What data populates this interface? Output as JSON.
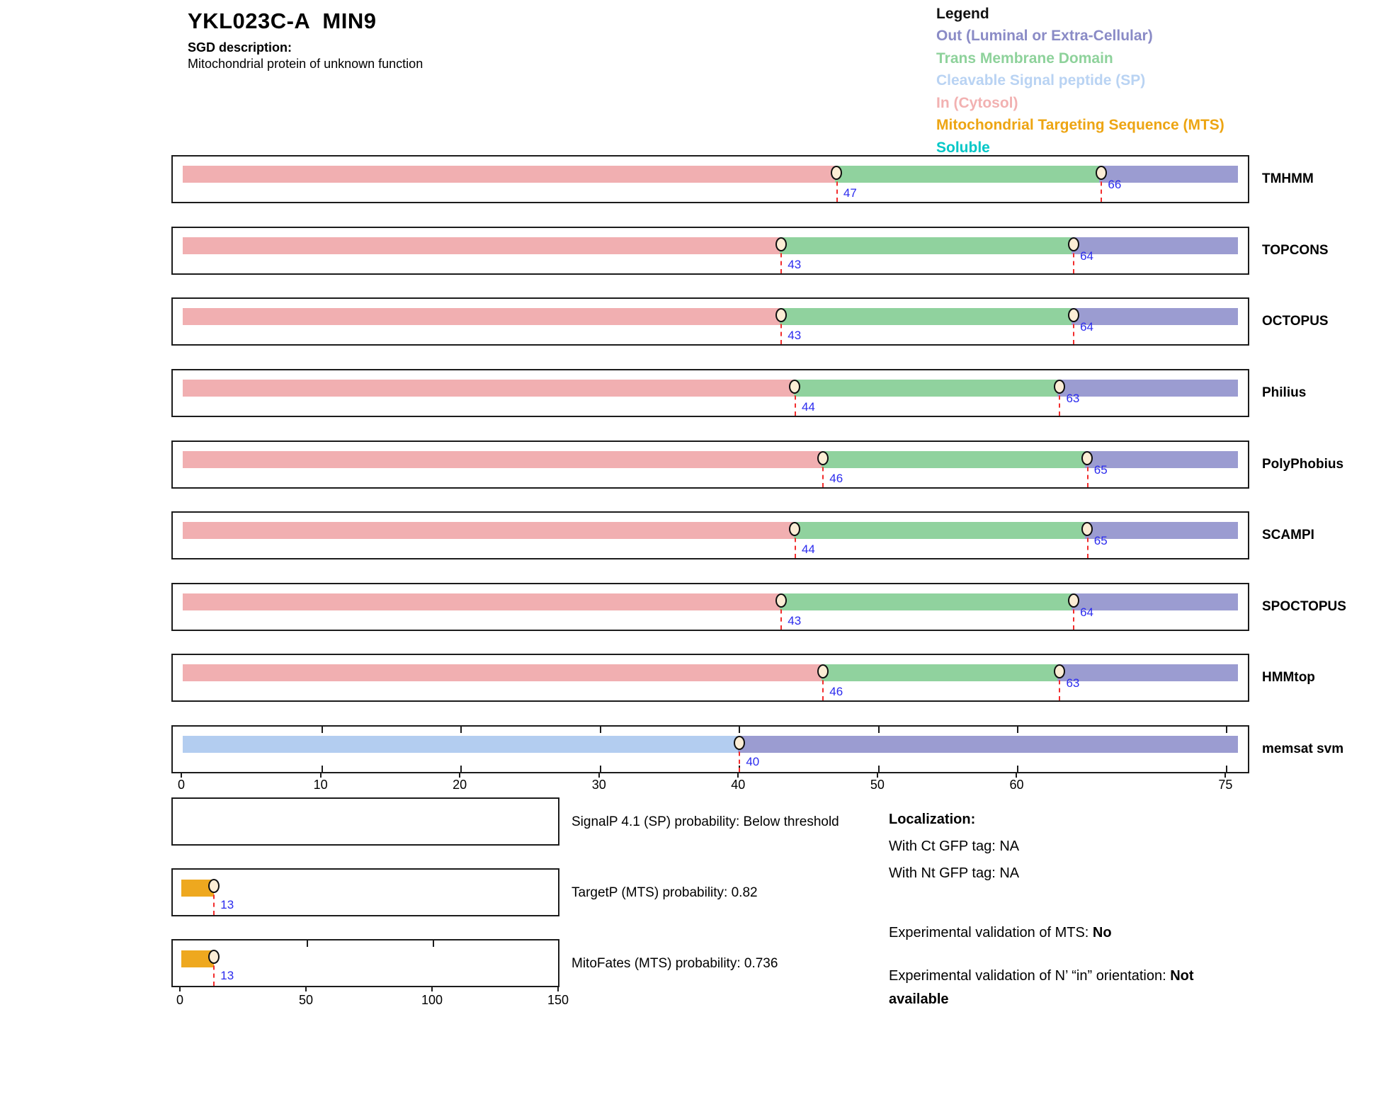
{
  "header": {
    "title": "YKL023C-A  MIN9",
    "sgd_label": "SGD description:",
    "sgd_description": "Mitochondrial protein of unknown function"
  },
  "legend": {
    "title": "Legend",
    "items": [
      {
        "label": "Out (Luminal or Extra-Cellular)",
        "color": "#8a8bc6"
      },
      {
        "label": "Trans Membrane Domain",
        "color": "#8ed29b"
      },
      {
        "label": "Cleavable Signal peptide (SP)",
        "color": "#b9d3f3"
      },
      {
        "label": "In (Cytosol)",
        "color": "#f2b1b1"
      },
      {
        "label": "Mitochondrial Targeting Sequence (MTS)",
        "color": "#eda513"
      },
      {
        "label": "Soluble",
        "color": "#00c7c7"
      }
    ]
  },
  "colors": {
    "in_cytosol": "#f1afb1",
    "trans_membrane": "#90d29e",
    "out_luminal": "#9b9cd1",
    "signal_peptide": "#b3cdf0",
    "mts": "#eea81f",
    "marker_fill": "#fcedd5",
    "boundary_line": "#f22d2d",
    "position_number": "#2b2bee",
    "box_border": "#1c1c1c"
  },
  "chart_data": {
    "type": "bar",
    "title": "YKL023C-A MIN9 membrane topology predictions",
    "x_axis_unit": "residue position",
    "main_axis": {
      "xmax": 76,
      "tick_positions": [
        0,
        10,
        20,
        30,
        40,
        50,
        60,
        75
      ],
      "ticks": [
        "0",
        "10",
        "20",
        "30",
        "40",
        "50",
        "60",
        "75"
      ]
    },
    "tracks": [
      {
        "name": "TMHMM",
        "xmax": 76,
        "segments": [
          {
            "from": 0,
            "to": 47,
            "color": "in_cytosol"
          },
          {
            "from": 47,
            "to": 66,
            "color": "trans_membrane"
          },
          {
            "from": 66,
            "to": 76,
            "color": "out_luminal"
          }
        ],
        "markers": [
          {
            "pos": 47,
            "label": "47"
          },
          {
            "pos": 66,
            "label": "66"
          }
        ]
      },
      {
        "name": "TOPCONS",
        "xmax": 76,
        "segments": [
          {
            "from": 0,
            "to": 43,
            "color": "in_cytosol"
          },
          {
            "from": 43,
            "to": 64,
            "color": "trans_membrane"
          },
          {
            "from": 64,
            "to": 76,
            "color": "out_luminal"
          }
        ],
        "markers": [
          {
            "pos": 43,
            "label": "43"
          },
          {
            "pos": 64,
            "label": "64"
          }
        ]
      },
      {
        "name": "OCTOPUS",
        "xmax": 76,
        "segments": [
          {
            "from": 0,
            "to": 43,
            "color": "in_cytosol"
          },
          {
            "from": 43,
            "to": 64,
            "color": "trans_membrane"
          },
          {
            "from": 64,
            "to": 76,
            "color": "out_luminal"
          }
        ],
        "markers": [
          {
            "pos": 43,
            "label": "43"
          },
          {
            "pos": 64,
            "label": "64"
          }
        ]
      },
      {
        "name": "Philius",
        "xmax": 76,
        "segments": [
          {
            "from": 0,
            "to": 44,
            "color": "in_cytosol"
          },
          {
            "from": 44,
            "to": 63,
            "color": "trans_membrane"
          },
          {
            "from": 63,
            "to": 76,
            "color": "out_luminal"
          }
        ],
        "markers": [
          {
            "pos": 44,
            "label": "44"
          },
          {
            "pos": 63,
            "label": "63"
          }
        ]
      },
      {
        "name": "PolyPhobius",
        "xmax": 76,
        "segments": [
          {
            "from": 0,
            "to": 46,
            "color": "in_cytosol"
          },
          {
            "from": 46,
            "to": 65,
            "color": "trans_membrane"
          },
          {
            "from": 65,
            "to": 76,
            "color": "out_luminal"
          }
        ],
        "markers": [
          {
            "pos": 46,
            "label": "46"
          },
          {
            "pos": 65,
            "label": "65"
          }
        ]
      },
      {
        "name": "SCAMPI",
        "xmax": 76,
        "segments": [
          {
            "from": 0,
            "to": 44,
            "color": "in_cytosol"
          },
          {
            "from": 44,
            "to": 65,
            "color": "trans_membrane"
          },
          {
            "from": 65,
            "to": 76,
            "color": "out_luminal"
          }
        ],
        "markers": [
          {
            "pos": 44,
            "label": "44"
          },
          {
            "pos": 65,
            "label": "65"
          }
        ]
      },
      {
        "name": "SPOCTOPUS",
        "xmax": 76,
        "segments": [
          {
            "from": 0,
            "to": 43,
            "color": "in_cytosol"
          },
          {
            "from": 43,
            "to": 64,
            "color": "trans_membrane"
          },
          {
            "from": 64,
            "to": 76,
            "color": "out_luminal"
          }
        ],
        "markers": [
          {
            "pos": 43,
            "label": "43"
          },
          {
            "pos": 64,
            "label": "64"
          }
        ]
      },
      {
        "name": "HMMtop",
        "xmax": 76,
        "segments": [
          {
            "from": 0,
            "to": 46,
            "color": "in_cytosol"
          },
          {
            "from": 46,
            "to": 63,
            "color": "trans_membrane"
          },
          {
            "from": 63,
            "to": 76,
            "color": "out_luminal"
          }
        ],
        "markers": [
          {
            "pos": 46,
            "label": "46"
          },
          {
            "pos": 63,
            "label": "63"
          }
        ]
      },
      {
        "name": "memsat svm",
        "xmax": 76,
        "segments": [
          {
            "from": 0,
            "to": 40,
            "color": "signal_peptide"
          },
          {
            "from": 40,
            "to": 76,
            "color": "out_luminal"
          }
        ],
        "markers": [
          {
            "pos": 40,
            "label": "40"
          }
        ],
        "inner_ticks": [
          10,
          20,
          30,
          40,
          50,
          60,
          75
        ]
      }
    ],
    "probability_plots": [
      {
        "name": "SignalP",
        "label": "SignalP 4.1 (SP) probability: Below threshold",
        "xmax": 150,
        "segments": [],
        "markers": [],
        "top_ticks": []
      },
      {
        "name": "TargetP",
        "label": "TargetP (MTS) probability: 0.82",
        "xmax": 150,
        "segments": [
          {
            "from": 0,
            "to": 13,
            "color": "mts"
          }
        ],
        "markers": [
          {
            "pos": 13,
            "label": "13"
          }
        ],
        "top_ticks": []
      },
      {
        "name": "MitoFates",
        "label": "MitoFates (MTS) probability: 0.736",
        "xmax": 150,
        "segments": [
          {
            "from": 0,
            "to": 13,
            "color": "mts"
          }
        ],
        "markers": [
          {
            "pos": 13,
            "label": "13"
          }
        ],
        "top_ticks": [
          50,
          100
        ]
      }
    ],
    "prob_axis": {
      "xmax": 150,
      "tick_positions": [
        0,
        50,
        100,
        150
      ],
      "ticks": [
        "0",
        "50",
        "100",
        "150"
      ]
    }
  },
  "localization": {
    "heading": "Localization:",
    "ct_line": "With Ct GFP tag: NA",
    "nt_line": "With Nt GFP tag: NA",
    "mts_label": "Experimental validation of MTS: ",
    "mts_value": "No",
    "orient_label": "Experimental validation of N’ “in” orientation: ",
    "orient_value": "Not available"
  }
}
